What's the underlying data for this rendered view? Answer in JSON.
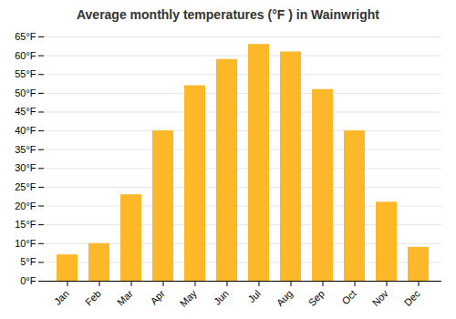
{
  "chart_data": {
    "type": "bar",
    "title": "Average monthly temperatures (°F ) in Wainwright",
    "categories": [
      "Jan",
      "Feb",
      "Mar",
      "Apr",
      "May",
      "Jun",
      "Jul",
      "Aug",
      "Sep",
      "Oct",
      "Nov",
      "Dec"
    ],
    "values": [
      7,
      10,
      23,
      40,
      52,
      59,
      63,
      61,
      51,
      40,
      21,
      9
    ],
    "color": "#FDB829",
    "ylim": [
      0,
      65
    ],
    "yticks": [
      {
        "value": 0,
        "label": "0°F"
      },
      {
        "value": 5,
        "label": "5°F"
      },
      {
        "value": 10,
        "label": "10°F"
      },
      {
        "value": 15,
        "label": "15°F"
      },
      {
        "value": 20,
        "label": "20°F"
      },
      {
        "value": 25,
        "label": "25°F"
      },
      {
        "value": 30,
        "label": "30°F"
      },
      {
        "value": 35,
        "label": "35°F"
      },
      {
        "value": 40,
        "label": "40°F"
      },
      {
        "value": 45,
        "label": "45°F"
      },
      {
        "value": 50,
        "label": "50°F"
      },
      {
        "value": 55,
        "label": "55°F"
      },
      {
        "value": 60,
        "label": "60°F"
      },
      {
        "value": 65,
        "label": "65°F"
      }
    ],
    "grid": true
  }
}
